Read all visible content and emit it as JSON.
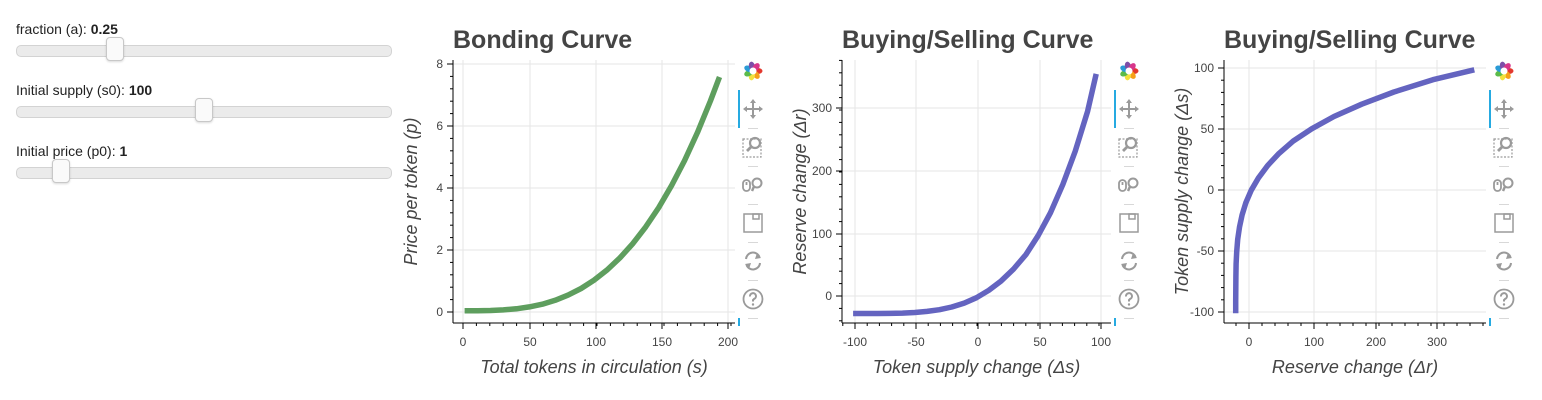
{
  "widgets": [
    {
      "label": "fraction (a): ",
      "value": "0.25",
      "min": 0,
      "max": 1,
      "current": 0.25
    },
    {
      "label": "Initial supply (s0): ",
      "value": "100",
      "min": 0,
      "max": 200,
      "current": 100
    },
    {
      "label": "Initial price (p0): ",
      "value": "1",
      "min": 0,
      "max": 10,
      "current": 1
    }
  ],
  "toolbar": [
    "bokeh-logo-icon",
    "pan-icon",
    "box-zoom-icon",
    "wheel-zoom-icon",
    "save-icon",
    "reset-icon",
    "help-icon"
  ],
  "chart_data": [
    {
      "type": "line",
      "title": "Bonding Curve",
      "xlabel": "Total tokens in circulation (s)",
      "ylabel": "Price per token (p)",
      "xlim": [
        -9,
        209
      ],
      "ylim": [
        -0.4,
        8.2
      ],
      "xticks": [
        "0",
        "50",
        "100",
        "150",
        "200"
      ],
      "yticks": [
        "0",
        "2",
        "4",
        "6",
        "8"
      ],
      "color": "#5e9e5e",
      "x": [
        0,
        10,
        20,
        30,
        40,
        50,
        60,
        70,
        80,
        90,
        100,
        110,
        120,
        130,
        140,
        150,
        160,
        170,
        180,
        190,
        197
      ],
      "y": [
        0,
        0.001,
        0.008,
        0.027,
        0.064,
        0.125,
        0.216,
        0.343,
        0.512,
        0.729,
        1.0,
        1.331,
        1.728,
        2.197,
        2.744,
        3.375,
        4.096,
        4.913,
        5.832,
        6.859,
        7.645
      ]
    },
    {
      "type": "line",
      "title": "Buying/Selling Curve",
      "xlabel": "Token supply change (Δs)",
      "ylabel": "Reserve change (Δr)",
      "xlim": [
        -109,
        109
      ],
      "ylim": [
        -40,
        375
      ],
      "xticks": [
        "-100",
        "-50",
        "0",
        "50",
        "100"
      ],
      "yticks": [
        "0",
        "100",
        "200",
        "300"
      ],
      "color": "#6464c0",
      "x": [
        -100,
        -90,
        -80,
        -70,
        -60,
        -50,
        -40,
        -30,
        -20,
        -10,
        0,
        10,
        20,
        30,
        40,
        50,
        60,
        70,
        80,
        90,
        97
      ],
      "y": [
        -25,
        -24.998,
        -24.96,
        -24.8,
        -24.36,
        -23.44,
        -21.76,
        -18.99,
        -14.76,
        -8.6,
        0,
        11.6,
        26.47,
        45.0,
        68.0,
        98.0,
        134.0,
        178.8,
        231.0,
        294.0,
        353.0
      ]
    },
    {
      "type": "line",
      "title": "Buying/Selling Curve",
      "xlabel": "Reserve change (Δr)",
      "ylabel": "Token supply change (Δs)",
      "xlim": [
        -44,
        380
      ],
      "ylim": [
        -108,
        106
      ],
      "xticks": [
        "0",
        "100",
        "200",
        "300"
      ],
      "yticks": [
        "-100",
        "-50",
        "0",
        "50",
        "100"
      ],
      "color": "#6464c0",
      "x": [
        -25,
        -24.998,
        -24.96,
        -24.8,
        -24.36,
        -23.44,
        -21.76,
        -18.99,
        -14.76,
        -8.6,
        0,
        11.6,
        26.47,
        45.0,
        68.0,
        98.0,
        134.0,
        178.8,
        231.0,
        294.0,
        361.0
      ],
      "y": [
        -100,
        -90,
        -80,
        -70,
        -60,
        -50,
        -40,
        -30,
        -20,
        -10,
        0,
        10,
        20,
        30,
        40,
        50,
        60,
        70,
        80,
        90,
        98
      ]
    }
  ]
}
